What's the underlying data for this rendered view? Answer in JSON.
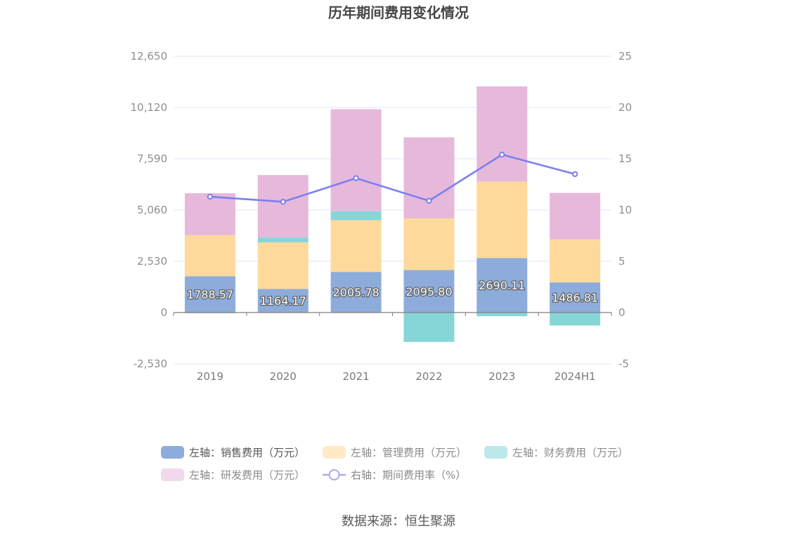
{
  "chart_data": {
    "type": "bar",
    "title": "历年期间费用变化情况",
    "categories": [
      "2019",
      "2020",
      "2021",
      "2022",
      "2023",
      "2024H1"
    ],
    "left_axis": {
      "ticks": [
        "12,650",
        "10,120",
        "7,590",
        "5,060",
        "2,530",
        "0",
        "-2,530"
      ],
      "ylim": [
        -2530,
        12650
      ]
    },
    "right_axis": {
      "ticks": [
        "25",
        "20",
        "15",
        "10",
        "5",
        "0",
        "-5"
      ],
      "ylim": [
        -5,
        25
      ]
    },
    "series": [
      {
        "name": "左轴：销售费用（万元）",
        "type": "bar",
        "color": "#8eacdb",
        "values": [
          1788.57,
          1164.17,
          2005.78,
          2095.8,
          2690.11,
          1486.81
        ],
        "labels": [
          "1788.57",
          "1164.17",
          "2005.78",
          "2095.80",
          "2690.11",
          "1486.81"
        ]
      },
      {
        "name": "左轴：管理费用（万元）",
        "type": "bar",
        "color": "#ffd99b",
        "values": [
          2030,
          2300,
          2550,
          2550,
          3770,
          2120
        ]
      },
      {
        "name": "左轴：财务费用（万元）",
        "type": "bar",
        "color": "#86d6d8",
        "values": [
          -30,
          240,
          440,
          -1450,
          -180,
          -640
        ]
      },
      {
        "name": "左轴：研发费用（万元）",
        "type": "bar",
        "color": "#e6b9db",
        "values": [
          2070,
          3080,
          5040,
          4000,
          4700,
          2300
        ]
      },
      {
        "name": "右轴：期间费用率（%）",
        "type": "line",
        "color": "#7b7ff0",
        "values": [
          11.3,
          10.8,
          13.1,
          10.9,
          15.4,
          13.5
        ]
      }
    ],
    "legend": {
      "row1": [
        "左轴：销售费用（万元）",
        "左轴：管理费用（万元）",
        "左轴：财务费用（万元）"
      ],
      "row2": [
        "左轴：研发费用（万元）",
        "右轴：期间费用率（%）"
      ]
    },
    "legend_placement": "bottom",
    "grid": true
  },
  "footer": {
    "source": "数据来源：恒生聚源"
  }
}
